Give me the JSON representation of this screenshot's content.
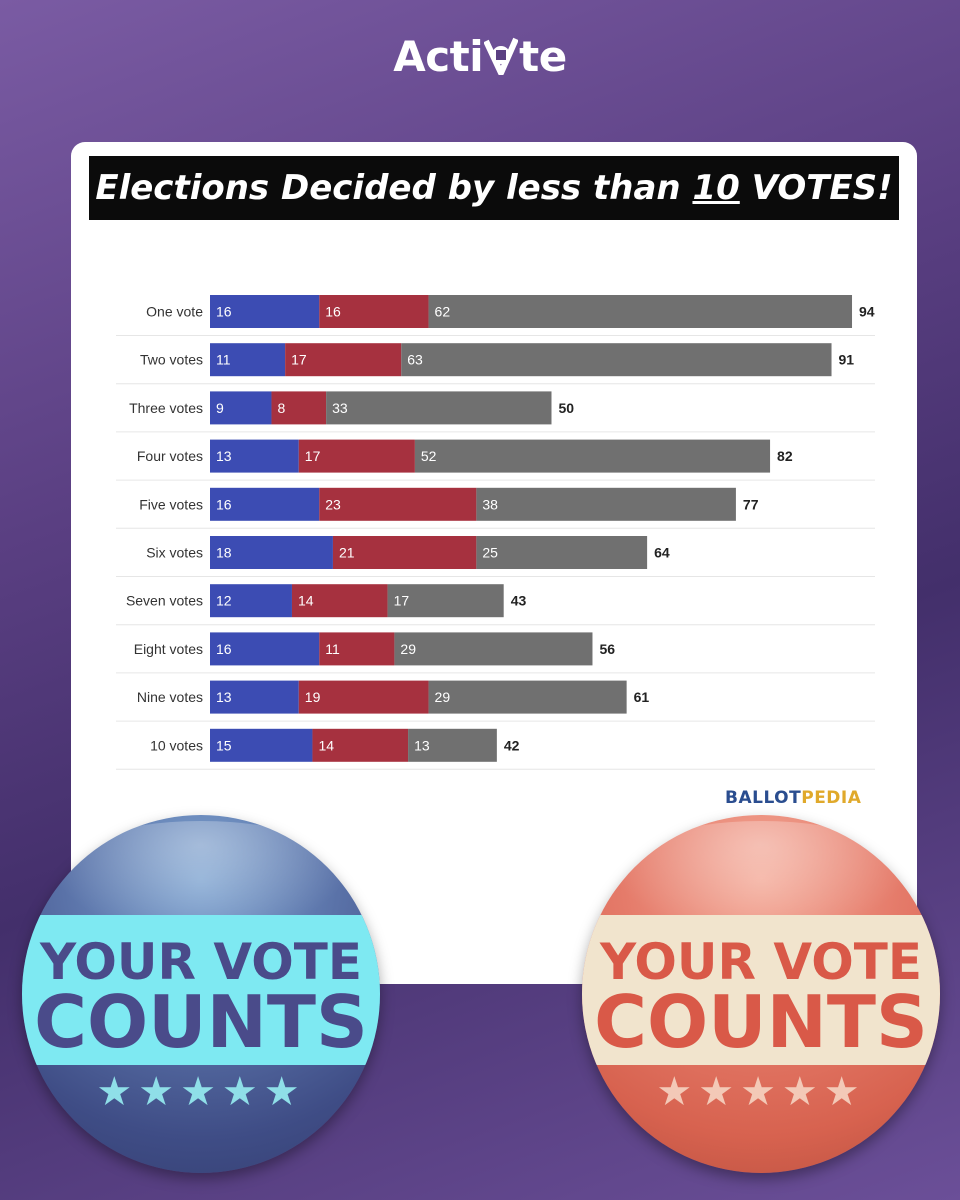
{
  "logo": {
    "text_left": "Acti",
    "text_right": "te"
  },
  "banner": {
    "pre": "Elections Decided by less than ",
    "num": "10",
    "post": " VOTES!"
  },
  "source": {
    "part1": "BALLOT",
    "part2": "PEDIA"
  },
  "buttons": {
    "line1": "YOUR VOTE",
    "line2": "COUNTS",
    "stars": "★★★★★"
  },
  "colors": {
    "blue": "#3c4cb3",
    "red": "#a6313f",
    "gray": "#707070",
    "ballot_blue": "#2a4d8f",
    "pedia_gold": "#e0a92b"
  },
  "chart_data": {
    "type": "bar",
    "stacked": true,
    "orientation": "horizontal",
    "categories": [
      "One vote",
      "Two votes",
      "Three votes",
      "Four votes",
      "Five votes",
      "Six votes",
      "Seven votes",
      "Eight votes",
      "Nine votes",
      "10 votes"
    ],
    "series": [
      {
        "color": "#3c4cb3",
        "values": [
          16,
          11,
          9,
          13,
          16,
          18,
          12,
          16,
          13,
          15
        ]
      },
      {
        "color": "#a6313f",
        "values": [
          16,
          17,
          8,
          17,
          23,
          21,
          14,
          11,
          19,
          14
        ]
      },
      {
        "color": "#707070",
        "values": [
          62,
          63,
          33,
          52,
          38,
          25,
          17,
          29,
          29,
          13
        ]
      }
    ],
    "totals": [
      94,
      91,
      50,
      82,
      77,
      64,
      43,
      56,
      61,
      42
    ],
    "xlim": [
      0,
      94
    ],
    "grid": false
  }
}
